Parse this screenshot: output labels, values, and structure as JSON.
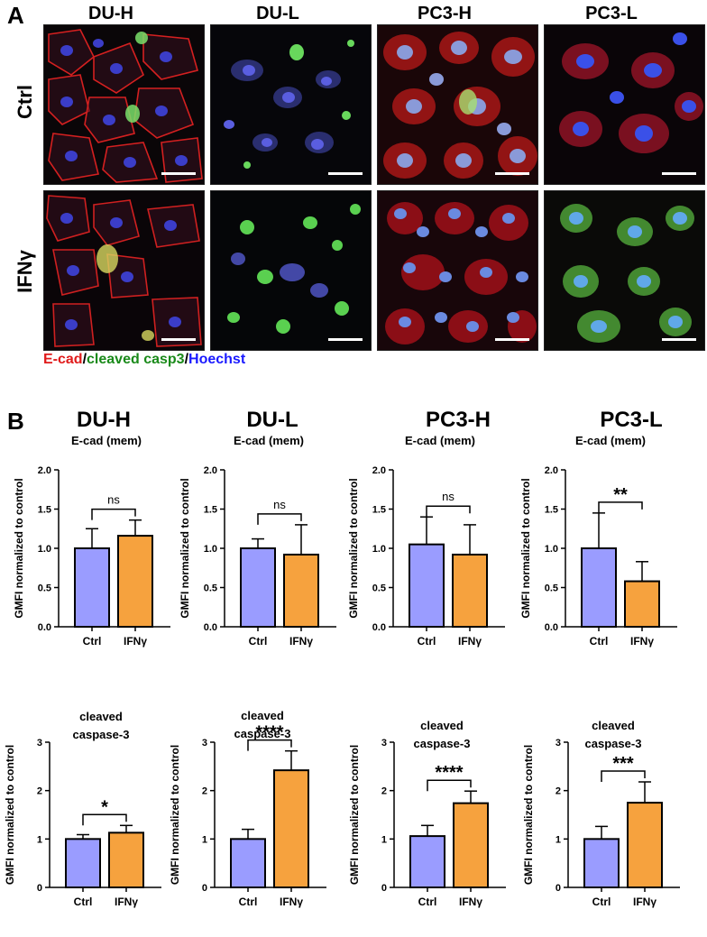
{
  "panel_a": {
    "letter": "A",
    "columns": [
      "DU-H",
      "DU-L",
      "PC3-H",
      "PC3-L"
    ],
    "rows": [
      "Ctrl",
      "IFNγ"
    ],
    "legend": {
      "part1": "E-cad",
      "sep1": "/",
      "part2": "cleaved casp3",
      "sep2": "/",
      "part3": "Hoechst",
      "color1": "#e01b1b",
      "color2": "#1a8a1a",
      "color3": "#1a1aff"
    }
  },
  "panel_b": {
    "letter": "B",
    "group_titles": [
      "DU-H",
      "DU-L",
      "PC3-H",
      "PC3-L"
    ]
  },
  "colors": {
    "ctrl": "#9a9cff",
    "ifng": "#f6a23e"
  },
  "chart_data": [
    {
      "type": "bar",
      "title": "E-cad (mem)",
      "ylabel": "GMFI normalized to control",
      "categories": [
        "Ctrl",
        "IFNγ"
      ],
      "values": [
        1.0,
        1.16
      ],
      "errors": [
        0.25,
        0.2
      ],
      "ylim": [
        0,
        2.0
      ],
      "yticks": [
        "0.0",
        "0.5",
        "1.0",
        "1.5",
        "2.0"
      ],
      "significance": "ns"
    },
    {
      "type": "bar",
      "title": "E-cad (mem)",
      "ylabel": "GMFI normalized to control",
      "categories": [
        "Ctrl",
        "IFNγ"
      ],
      "values": [
        1.0,
        0.92
      ],
      "errors": [
        0.12,
        0.38
      ],
      "ylim": [
        0,
        2.0
      ],
      "yticks": [
        "0.0",
        "0.5",
        "1.0",
        "1.5",
        "2.0"
      ],
      "significance": "ns"
    },
    {
      "type": "bar",
      "title": "E-cad (mem)",
      "ylabel": "GMFI normalized to control",
      "categories": [
        "Ctrl",
        "IFNγ"
      ],
      "values": [
        1.05,
        0.92
      ],
      "errors": [
        0.35,
        0.38
      ],
      "ylim": [
        0,
        2.0
      ],
      "yticks": [
        "0.0",
        "0.5",
        "1.0",
        "1.5",
        "2.0"
      ],
      "significance": "ns"
    },
    {
      "type": "bar",
      "title": "E-cad (mem)",
      "ylabel": "GMFI normalized to control",
      "categories": [
        "Ctrl",
        "IFNγ"
      ],
      "values": [
        1.0,
        0.58
      ],
      "errors": [
        0.45,
        0.25
      ],
      "ylim": [
        0,
        2.0
      ],
      "yticks": [
        "0.0",
        "0.5",
        "1.0",
        "1.5",
        "2.0"
      ],
      "significance": "**"
    },
    {
      "type": "bar",
      "title": "cleaved\ncaspase-3",
      "ylabel": "GMFI normalized to control",
      "categories": [
        "Ctrl",
        "IFNγ"
      ],
      "values": [
        1.0,
        1.13
      ],
      "errors": [
        0.09,
        0.15
      ],
      "ylim": [
        0,
        3
      ],
      "yticks": [
        "0",
        "1",
        "2",
        "3"
      ],
      "significance": "*"
    },
    {
      "type": "bar",
      "title": "cleaved\ncaspase-3",
      "ylabel": "GMFI normalized to control",
      "categories": [
        "Ctrl",
        "IFNγ"
      ],
      "values": [
        1.0,
        2.42
      ],
      "errors": [
        0.2,
        0.4
      ],
      "ylim": [
        0,
        3
      ],
      "yticks": [
        "0",
        "1",
        "2",
        "3"
      ],
      "significance": "****"
    },
    {
      "type": "bar",
      "title": "cleaved\ncaspase-3",
      "ylabel": "GMFI normalized to control",
      "categories": [
        "Ctrl",
        "IFNγ"
      ],
      "values": [
        1.06,
        1.74
      ],
      "errors": [
        0.22,
        0.25
      ],
      "ylim": [
        0,
        3
      ],
      "yticks": [
        "0",
        "1",
        "2",
        "3"
      ],
      "significance": "****"
    },
    {
      "type": "bar",
      "title": "cleaved\ncaspase-3",
      "ylabel": "GMFI normalized to control",
      "categories": [
        "Ctrl",
        "IFNγ"
      ],
      "values": [
        1.0,
        1.75
      ],
      "errors": [
        0.26,
        0.43
      ],
      "ylim": [
        0,
        3
      ],
      "yticks": [
        "0",
        "1",
        "2",
        "3"
      ],
      "significance": "***"
    }
  ]
}
